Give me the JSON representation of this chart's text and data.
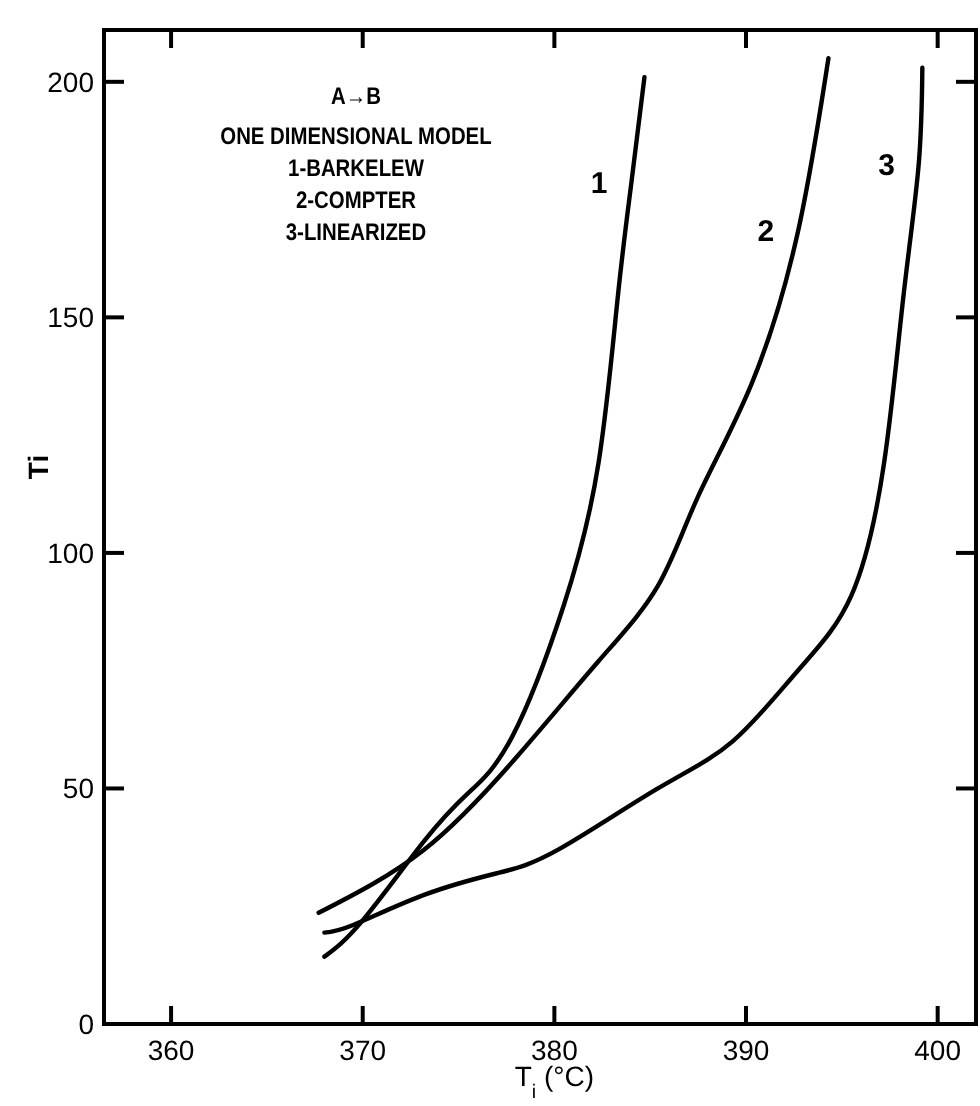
{
  "chart_data": {
    "type": "line",
    "xlabel": "T$_{i}$ (°C)",
    "ylabel": "Ti",
    "xlim": [
      356.5,
      402
    ],
    "ylim": [
      0,
      211
    ],
    "xticks": [
      360,
      370,
      380,
      390,
      400
    ],
    "yticks": [
      0,
      50,
      100,
      150,
      200
    ],
    "grid": false,
    "marker": "none",
    "line_style": "solid",
    "annotations": [
      "A→B",
      "ONE DIMENSIONAL MODEL",
      "1-BARKELEW",
      "2-COMPTER",
      "3-LINEARIZED"
    ],
    "series": [
      {
        "name": "1",
        "color": "#000000",
        "x": [
          368.0,
          370.0,
          373.2,
          375.5,
          377.8,
          380.5,
          382.3,
          383.3,
          384.0,
          384.7
        ],
        "values": [
          14.3,
          22,
          38.8,
          49,
          61,
          89,
          119,
          154,
          178,
          201
        ]
      },
      {
        "name": "2",
        "color": "#000000",
        "x": [
          367.7,
          373.2,
          378.1,
          382.3,
          385.4,
          387.5,
          390.3,
          392.7,
          394.3
        ],
        "values": [
          23.6,
          37,
          57,
          77,
          93,
          112,
          136,
          168,
          205
        ]
      },
      {
        "name": "3",
        "color": "#000000",
        "x": [
          368.0,
          369.5,
          373.2,
          377.0,
          380.2,
          385.4,
          389.3,
          392.7,
          395.5,
          397.2,
          398.2,
          399.0,
          399.2
        ],
        "values": [
          19.4,
          21,
          27.4,
          32,
          37,
          50,
          60,
          75,
          91,
          119,
          154,
          182,
          203
        ]
      }
    ]
  }
}
